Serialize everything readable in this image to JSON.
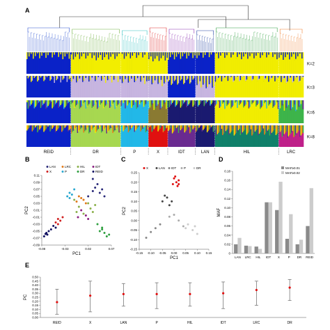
{
  "colors": {
    "blue": "#0a22c8",
    "yellow": "#f2ee00",
    "lilac": "#c7b5e0",
    "darkgrey": "#555555",
    "green": "#3db54a",
    "lightgreen": "#a7d850",
    "cyan": "#22b8e8",
    "olive": "#8a7a32",
    "red": "#e01010",
    "purple": "#6a2a90",
    "navy": "#1a1a70",
    "teal": "#10806a",
    "orange": "#f07818",
    "magenta": "#c0208a"
  },
  "panels": {
    "A": "A",
    "B": "B",
    "C": "C",
    "D": "D",
    "E": "E"
  },
  "structure": {
    "k_labels": [
      "K=2",
      "K=3",
      "K=6",
      "K=8"
    ],
    "groups": [
      "REID",
      "DR",
      "P",
      "X",
      "IDT",
      "LAN",
      "HIL",
      "LRC"
    ]
  },
  "chart_data": [
    {
      "type": "scatter",
      "panel": "B",
      "xlabel": "PC1",
      "ylabel": "PC2",
      "xticks": [
        "-0.08",
        "-0.03",
        "0.02",
        "0.07"
      ],
      "yticks": [
        "0.11",
        "0.09",
        "0.07",
        "0.05",
        "0.03",
        "0.01",
        "-0.01",
        "-0.03",
        "-0.05",
        "-0.07",
        "-0.09"
      ],
      "xlim": [
        -0.08,
        0.07
      ],
      "ylim": [
        -0.09,
        0.11
      ],
      "legend": [
        "LAN",
        "LRC",
        "HIL",
        "IDT",
        "X",
        "P",
        "DR",
        "REID"
      ],
      "series": [
        {
          "name": "LAN",
          "points": [
            [
              0.03,
              0.1
            ],
            [
              0.04,
              0.085
            ],
            [
              0.05,
              0.07
            ],
            [
              0.045,
              0.06
            ],
            [
              0.035,
              0.075
            ],
            [
              0.055,
              0.05
            ],
            [
              0.03,
              0.065
            ],
            [
              0.02,
              0.05
            ]
          ]
        },
        {
          "name": "LRC",
          "points": [
            [
              0.0,
              0.05
            ],
            [
              0.01,
              0.04
            ],
            [
              -0.005,
              0.035
            ],
            [
              0.015,
              0.03
            ],
            [
              0.005,
              0.045
            ]
          ]
        },
        {
          "name": "HIL",
          "points": [
            [
              -0.01,
              0.04
            ],
            [
              0.0,
              0.02
            ],
            [
              0.02,
              0.03
            ],
            [
              0.025,
              0.015
            ],
            [
              0.01,
              0.0
            ],
            [
              0.03,
              0.005
            ],
            [
              -0.005,
              0.005
            ],
            [
              0.035,
              0.025
            ]
          ]
        },
        {
          "name": "IDT",
          "points": [
            [
              0.005,
              0.01
            ],
            [
              0.015,
              -0.005
            ],
            [
              -0.002,
              -0.01
            ],
            [
              0.02,
              -0.015
            ]
          ]
        },
        {
          "name": "X",
          "points": [
            [
              -0.045,
              -0.015
            ],
            [
              -0.05,
              -0.025
            ],
            [
              -0.04,
              -0.02
            ],
            [
              -0.045,
              -0.03
            ],
            [
              -0.035,
              -0.01
            ]
          ]
        },
        {
          "name": "P",
          "points": [
            [
              -0.02,
              0.06
            ],
            [
              -0.015,
              0.055
            ],
            [
              -0.025,
              0.05
            ],
            [
              -0.01,
              0.07
            ],
            [
              -0.02,
              0.045
            ]
          ]
        },
        {
          "name": "DR",
          "points": [
            [
              0.04,
              -0.03
            ],
            [
              0.05,
              -0.045
            ],
            [
              0.055,
              -0.055
            ],
            [
              0.06,
              -0.065
            ],
            [
              0.045,
              -0.05
            ],
            [
              0.065,
              -0.06
            ],
            [
              0.05,
              -0.04
            ]
          ]
        },
        {
          "name": "REID",
          "points": [
            [
              -0.075,
              -0.065
            ],
            [
              -0.07,
              -0.055
            ],
            [
              -0.065,
              -0.05
            ],
            [
              -0.06,
              -0.045
            ],
            [
              -0.055,
              -0.035
            ],
            [
              -0.068,
              -0.06
            ],
            [
              -0.05,
              -0.04
            ],
            [
              -0.072,
              -0.058
            ]
          ]
        }
      ]
    },
    {
      "type": "scatter",
      "panel": "C",
      "xlabel": "PC1",
      "ylabel": "PC2",
      "xticks": [
        "-0.15",
        "-0.10",
        "-0.05",
        "0.00",
        "0.05",
        "0.10",
        "0.15"
      ],
      "yticks": [
        "0.25",
        "0.20",
        "0.15",
        "0.10",
        "0.05",
        "0.00",
        "-0.05",
        "-0.10",
        "-0.15"
      ],
      "xlim": [
        -0.15,
        0.15
      ],
      "ylim": [
        -0.15,
        0.25
      ],
      "legend": [
        "X",
        "LAN",
        "IDT",
        "P",
        "DR"
      ],
      "series": [
        {
          "name": "X",
          "points": [
            [
              0.0,
              0.22
            ],
            [
              0.01,
              0.2
            ],
            [
              0.02,
              0.21
            ],
            [
              -0.005,
              0.19
            ],
            [
              0.015,
              0.18
            ],
            [
              0.005,
              0.23
            ],
            [
              0.02,
              0.19
            ]
          ]
        },
        {
          "name": "LAN",
          "points": [
            [
              -0.03,
              0.12
            ],
            [
              -0.05,
              0.1
            ],
            [
              -0.02,
              0.08
            ],
            [
              -0.04,
              0.13
            ],
            [
              -0.01,
              0.1
            ]
          ]
        },
        {
          "name": "IDT",
          "points": [
            [
              -0.08,
              -0.04
            ],
            [
              -0.06,
              -0.02
            ],
            [
              -0.1,
              -0.06
            ],
            [
              -0.12,
              -0.09
            ]
          ]
        },
        {
          "name": "P",
          "points": [
            [
              0.0,
              0.03
            ],
            [
              0.02,
              0.0
            ],
            [
              -0.02,
              0.02
            ],
            [
              0.04,
              -0.03
            ]
          ]
        },
        {
          "name": "DR",
          "points": [
            [
              0.06,
              -0.02
            ],
            [
              0.08,
              -0.05
            ],
            [
              0.1,
              -0.07
            ],
            [
              0.05,
              -0.04
            ],
            [
              0.09,
              -0.03
            ]
          ]
        }
      ]
    },
    {
      "type": "bar",
      "panel": "D",
      "ylabel": "MAF",
      "categories": [
        "LAN",
        "LRC",
        "HIL",
        "IDT",
        "X",
        "P",
        "DR",
        "REID"
      ],
      "ylim": [
        0,
        0.18
      ],
      "yticks": [
        "0",
        "0.02",
        "0.04",
        "0.06",
        "0.08",
        "0.10",
        "0.12",
        "0.14",
        "0.16",
        "0.18"
      ],
      "series": [
        {
          "name": "MAF≥0.01",
          "values": [
            0.02,
            0.017,
            0.015,
            0.112,
            0.095,
            0.032,
            0.02,
            0.06
          ]
        },
        {
          "name": "MAF≥0.02",
          "values": [
            0.034,
            0.016,
            0.01,
            0.112,
            0.157,
            0.086,
            0.03,
            0.143
          ]
        }
      ]
    },
    {
      "type": "errorbar",
      "panel": "E",
      "ylabel": "PC",
      "categories": [
        "REID",
        "X",
        "LAN",
        "P",
        "HIL",
        "IDT",
        "LRC",
        "DR"
      ],
      "ylim": [
        0,
        0.5
      ],
      "yticks": [
        "0.00",
        "0.05",
        "0.10",
        "0.15",
        "0.20",
        "0.25",
        "0.30",
        "0.35",
        "0.40",
        "0.45",
        "0.50"
      ],
      "values": [
        0.19,
        0.27,
        0.29,
        0.29,
        0.29,
        0.3,
        0.34,
        0.37
      ],
      "lower": [
        0.04,
        0.07,
        0.14,
        0.11,
        0.14,
        0.11,
        0.15,
        0.21
      ],
      "upper": [
        0.35,
        0.45,
        0.42,
        0.43,
        0.43,
        0.44,
        0.45,
        0.47
      ]
    }
  ]
}
